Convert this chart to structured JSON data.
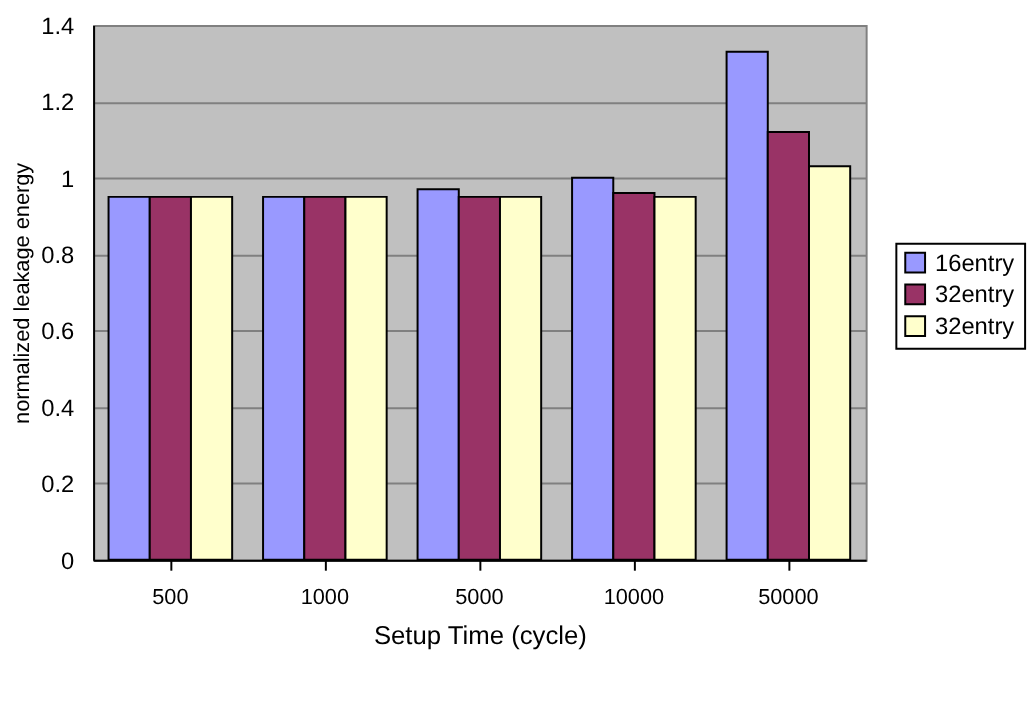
{
  "chart_data": {
    "type": "bar",
    "xlabel": "Setup Time (cycle)",
    "ylabel": "normalized leakage energy",
    "categories": [
      "500",
      "1000",
      "5000",
      "10000",
      "50000"
    ],
    "series": [
      {
        "name": "16entry",
        "color": "#9999ff",
        "values": [
          0.95,
          0.95,
          0.97,
          1.0,
          1.33
        ]
      },
      {
        "name": "32entry",
        "color": "#993366",
        "values": [
          0.95,
          0.95,
          0.95,
          0.96,
          1.12
        ]
      },
      {
        "name": "32entry",
        "color": "#ffffcc",
        "values": [
          0.95,
          0.95,
          0.95,
          0.95,
          1.03
        ]
      }
    ],
    "ylim": [
      0,
      1.4
    ],
    "yticks": [
      0,
      0.2,
      0.4,
      0.6,
      0.8,
      1,
      1.2,
      1.4
    ],
    "grid": "y",
    "legend": "right"
  }
}
